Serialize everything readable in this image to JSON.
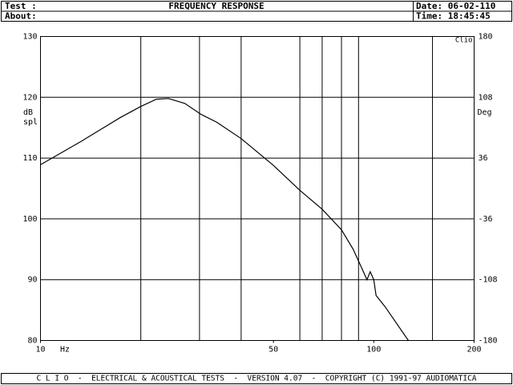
{
  "header": {
    "test": "Test :",
    "title": "FREQUENCY RESPONSE",
    "date": "Date: 06-02-110",
    "about": "About:",
    "time": "Time: 18:45:45"
  },
  "footer": "C L I O  -  ELECTRICAL & ACOUSTICAL TESTS  -  VERSION 4.07  -  COPYRIGHT (C) 1991-97 AUDIOMATICA",
  "chart_data": {
    "type": "line",
    "log_x": true,
    "grid": true,
    "color": "#000000",
    "x_label": "Hz",
    "y_label": [
      "dB",
      "spl"
    ],
    "y2_label": "Deg",
    "corner_label": "Clio",
    "x": [
      10,
      13.2,
      17.4,
      20,
      22.3,
      24.2,
      27.1,
      30.3,
      33.8,
      40,
      50,
      60,
      70,
      80,
      86.7,
      92.4,
      95.4,
      97.6,
      100,
      101.6,
      108.3,
      127
    ],
    "values": [
      108.9,
      112.7,
      116.7,
      118.5,
      119.7,
      119.8,
      119.0,
      117.2,
      115.9,
      113.2,
      108.8,
      104.7,
      101.6,
      98.2,
      95.0,
      91.7,
      90.0,
      91.3,
      90.0,
      87.4,
      85.5,
      80
    ],
    "xlim": [
      10,
      200
    ],
    "xticks": [
      10,
      50,
      100,
      200
    ],
    "xgrid": [
      20,
      30,
      40,
      60,
      70,
      80,
      90,
      150
    ],
    "ylim": [
      80,
      130
    ],
    "yticks": [
      80,
      90,
      100,
      110,
      120,
      130
    ],
    "y2lim": [
      -180,
      180
    ],
    "y2ticks": [
      -180,
      -108,
      -36,
      36,
      108,
      180
    ]
  }
}
